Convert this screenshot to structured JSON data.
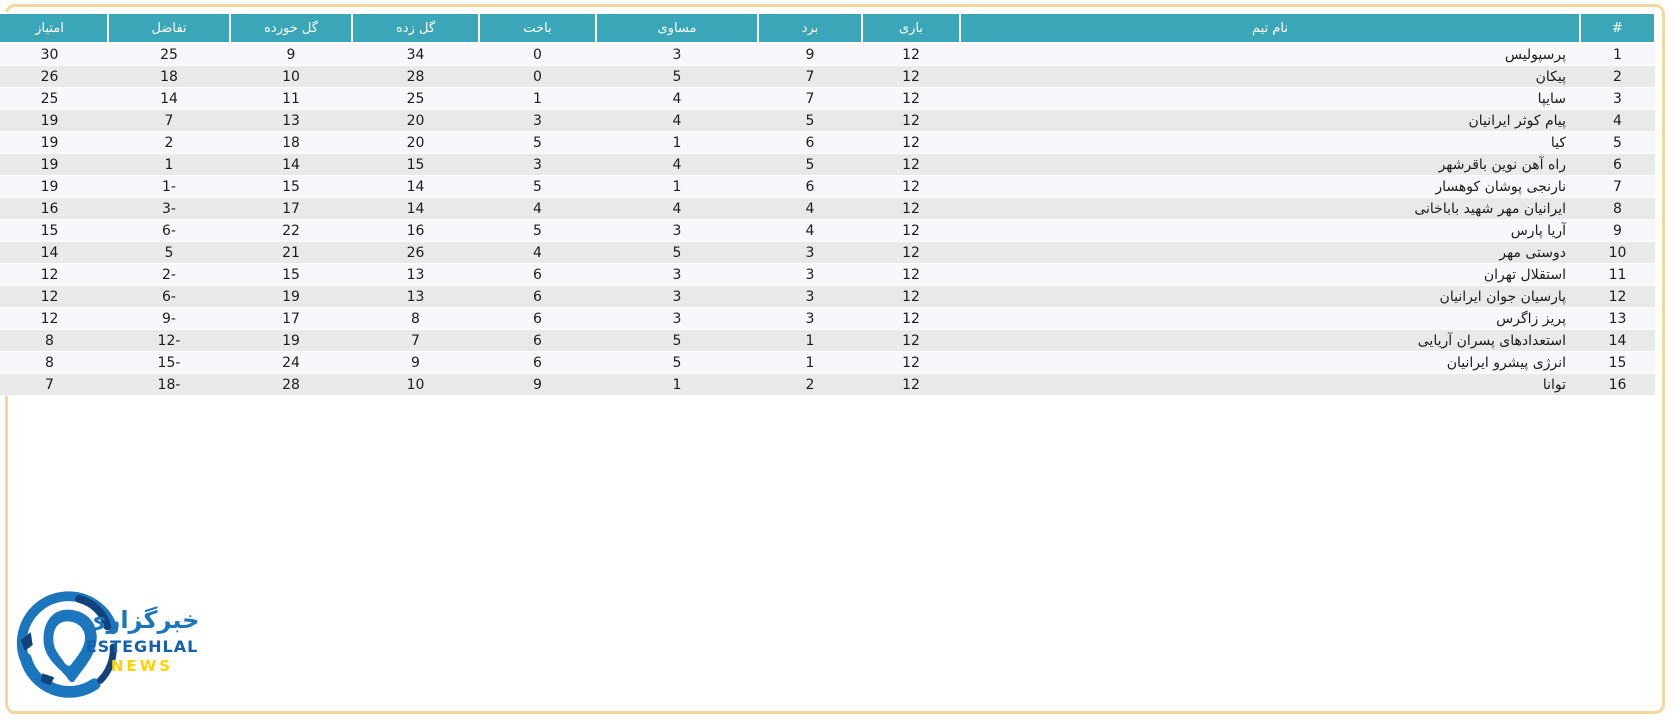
{
  "table": {
    "headers": [
      {
        "key": "rank",
        "label": "#"
      },
      {
        "key": "team",
        "label": "نام تیم"
      },
      {
        "key": "played",
        "label": "بازی"
      },
      {
        "key": "wins",
        "label": "برد"
      },
      {
        "key": "draws",
        "label": "مساوی"
      },
      {
        "key": "losses",
        "label": "باخت"
      },
      {
        "key": "gf",
        "label": "گل زده"
      },
      {
        "key": "ga",
        "label": "گل خورده"
      },
      {
        "key": "gd",
        "label": "تفاضل"
      },
      {
        "key": "points",
        "label": "امتیاز"
      }
    ],
    "rows": [
      {
        "rank": "1",
        "team": "پرسپولیس",
        "played": "12",
        "wins": "9",
        "draws": "3",
        "losses": "0",
        "gf": "34",
        "ga": "9",
        "gd": "25",
        "points": "30"
      },
      {
        "rank": "2",
        "team": "پیکان",
        "played": "12",
        "wins": "7",
        "draws": "5",
        "losses": "0",
        "gf": "28",
        "ga": "10",
        "gd": "18",
        "points": "26"
      },
      {
        "rank": "3",
        "team": "سایپا",
        "played": "12",
        "wins": "7",
        "draws": "4",
        "losses": "1",
        "gf": "25",
        "ga": "11",
        "gd": "14",
        "points": "25"
      },
      {
        "rank": "4",
        "team": "پیام کوثر ایرانیان",
        "played": "12",
        "wins": "5",
        "draws": "4",
        "losses": "3",
        "gf": "20",
        "ga": "13",
        "gd": "7",
        "points": "19"
      },
      {
        "rank": "5",
        "team": "کیا",
        "played": "12",
        "wins": "6",
        "draws": "1",
        "losses": "5",
        "gf": "20",
        "ga": "18",
        "gd": "2",
        "points": "19"
      },
      {
        "rank": "6",
        "team": "راه آهن نوین باقرشهر",
        "played": "12",
        "wins": "5",
        "draws": "4",
        "losses": "3",
        "gf": "15",
        "ga": "14",
        "gd": "1",
        "points": "19"
      },
      {
        "rank": "7",
        "team": "نارنجی پوشان کوهسار",
        "played": "12",
        "wins": "6",
        "draws": "1",
        "losses": "5",
        "gf": "14",
        "ga": "15",
        "gd": "-1",
        "points": "19"
      },
      {
        "rank": "8",
        "team": "ایرانیان مهر شهید باباخانی",
        "played": "12",
        "wins": "4",
        "draws": "4",
        "losses": "4",
        "gf": "14",
        "ga": "17",
        "gd": "-3",
        "points": "16"
      },
      {
        "rank": "9",
        "team": "آریا پارس",
        "played": "12",
        "wins": "4",
        "draws": "3",
        "losses": "5",
        "gf": "16",
        "ga": "22",
        "gd": "-6",
        "points": "15"
      },
      {
        "rank": "10",
        "team": "دوستی مهر",
        "played": "12",
        "wins": "3",
        "draws": "5",
        "losses": "4",
        "gf": "26",
        "ga": "21",
        "gd": "5",
        "points": "14"
      },
      {
        "rank": "11",
        "team": "استقلال تهران",
        "played": "12",
        "wins": "3",
        "draws": "3",
        "losses": "6",
        "gf": "13",
        "ga": "15",
        "gd": "-2",
        "points": "12"
      },
      {
        "rank": "12",
        "team": "پارسیان جوان ایرانیان",
        "played": "12",
        "wins": "3",
        "draws": "3",
        "losses": "6",
        "gf": "13",
        "ga": "19",
        "gd": "-6",
        "points": "12"
      },
      {
        "rank": "13",
        "team": "پریز زاگرس",
        "played": "12",
        "wins": "3",
        "draws": "3",
        "losses": "6",
        "gf": "8",
        "ga": "17",
        "gd": "-9",
        "points": "12"
      },
      {
        "rank": "14",
        "team": "استعدادهای پسران آریایی",
        "played": "12",
        "wins": "1",
        "draws": "5",
        "losses": "6",
        "gf": "7",
        "ga": "19",
        "gd": "-12",
        "points": "8"
      },
      {
        "rank": "15",
        "team": "انرژی پیشرو ایرانیان",
        "played": "12",
        "wins": "1",
        "draws": "5",
        "losses": "6",
        "gf": "9",
        "ga": "24",
        "gd": "-15",
        "points": "8"
      },
      {
        "rank": "16",
        "team": "توانا",
        "played": "12",
        "wins": "2",
        "draws": "1",
        "losses": "9",
        "gf": "10",
        "ga": "28",
        "gd": "-18",
        "points": "7"
      }
    ]
  },
  "logo": {
    "agency_fa": "خبرگزاری",
    "brand": "ESTEGHLAL",
    "sub": "NEWS",
    "ball_icon": "soccer-ball-icon"
  },
  "colors": {
    "header_teal": "#3aa6b8",
    "row_light": "#f8f8fc",
    "row_alt": "#e9e9e9",
    "page_border_tan": "#f2d7a0",
    "logo_blue": "#1c76bd",
    "logo_navy": "#12427c",
    "logo_yellow": "#ffd200"
  }
}
